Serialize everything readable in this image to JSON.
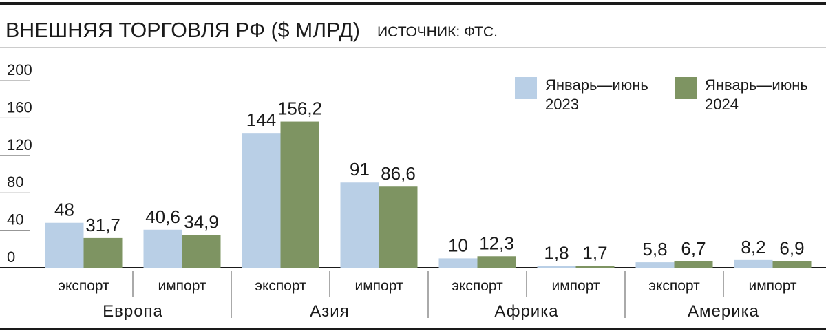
{
  "chart_data": {
    "type": "bar",
    "title": "ВНЕШНЯЯ ТОРГОВЛЯ РФ ($ МЛРД)",
    "subtitle": "ИСТОЧНИК: ФТС.",
    "categories": [
      "экспорт",
      "импорт",
      "экспорт",
      "импорт",
      "экспорт",
      "импорт",
      "экспорт",
      "импорт"
    ],
    "groups": [
      "Европа",
      "Азия",
      "Африка",
      "Америка"
    ],
    "series": [
      {
        "name": "Январь—июнь 2023",
        "color": "#b9cfe6",
        "values": [
          48,
          40.6,
          144,
          91,
          10,
          1.8,
          5.8,
          8.2
        ],
        "value_labels": [
          "48",
          "40,6",
          "144",
          "91",
          "10",
          "1,8",
          "5,8",
          "8,2"
        ]
      },
      {
        "name": "Январь—июнь 2024",
        "color": "#7e9462",
        "values": [
          31.7,
          34.9,
          156.2,
          86.6,
          12.3,
          1.7,
          6.7,
          6.9
        ],
        "value_labels": [
          "31,7",
          "34,9",
          "156,2",
          "86,6",
          "12,3",
          "1,7",
          "6,7",
          "6,9"
        ]
      }
    ],
    "ylim": [
      0,
      200
    ],
    "yticks": [
      0,
      40,
      80,
      120,
      160,
      200
    ]
  }
}
